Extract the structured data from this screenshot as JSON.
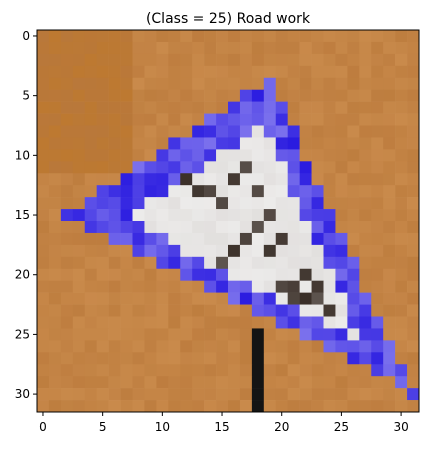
{
  "chart_data": {
    "type": "heatmap",
    "title": "(Class = 25) Road work",
    "xlabel": "",
    "ylabel": "",
    "xlim": [
      -0.5,
      31.5
    ],
    "ylim": [
      31.5,
      -0.5
    ],
    "x_ticks": [
      0,
      5,
      10,
      15,
      20,
      25,
      30
    ],
    "y_ticks": [
      0,
      5,
      10,
      15,
      20,
      25,
      30
    ],
    "image_size": [
      32,
      32
    ],
    "origin": "top-left",
    "grid": false,
    "content": "pixelated traffic sign: white triangle with blue border and dark road-work symbol on an orange-brown background",
    "colors": {
      "background": "#c98a4b",
      "background_dark": "#b9783a",
      "border_blue": "#2a1be0",
      "border_light": "#8f86f0",
      "inner_white": "#ecebea",
      "symbol_dark": "#3a2f28",
      "pole": "#141414"
    }
  }
}
